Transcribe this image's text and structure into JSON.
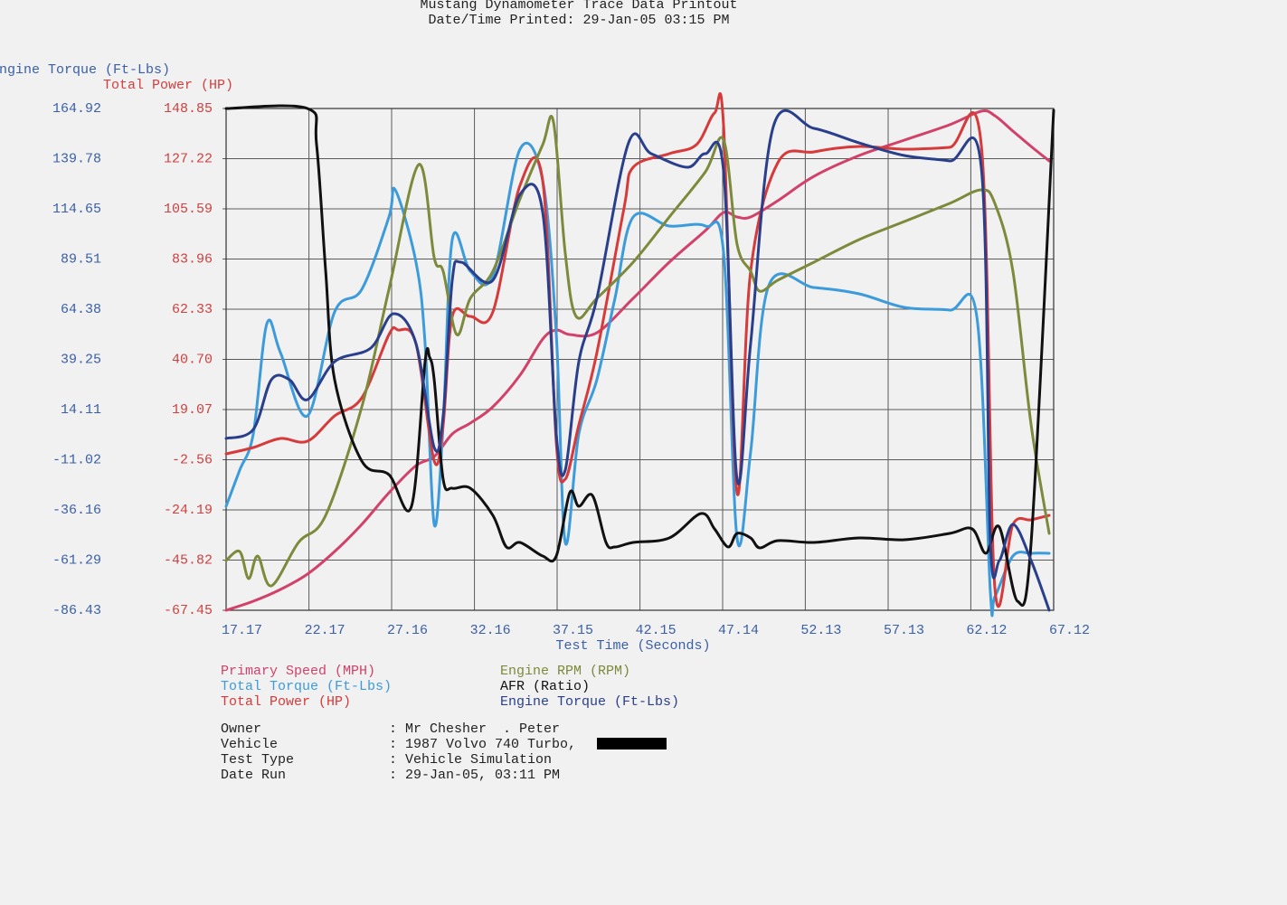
{
  "chart_data": {
    "type": "line",
    "title": "Mustang Dynamometer Trace Data Printout",
    "subtitle": "Date/Time Printed: 29-Jan-05 03:15 PM",
    "ylabel": "Engine Torque (Ft-Lbs)",
    "y2label": "Total Power (HP)",
    "xlabel": "Test Time (Seconds)",
    "xlim": [
      17.17,
      67.12
    ],
    "xticks": [
      17.17,
      22.17,
      27.16,
      32.16,
      37.15,
      42.15,
      47.14,
      52.13,
      57.13,
      62.12,
      67.12
    ],
    "ylim": [
      -86.43,
      164.92
    ],
    "yticks": [
      164.92,
      139.78,
      114.65,
      89.51,
      64.38,
      39.25,
      14.11,
      -11.02,
      -36.16,
      -61.29,
      -86.43
    ],
    "y2lim": [
      -67.45,
      148.85
    ],
    "y2ticks": [
      148.85,
      127.22,
      105.59,
      83.96,
      62.33,
      {
        "value": 40.7,
        "label": "40.70"
      },
      19.07,
      -2.56,
      -24.19,
      -45.82,
      -67.45
    ],
    "grid": true,
    "series": [
      {
        "name": "Primary Speed (MPH)",
        "color": "#d2416a",
        "x": [
          17.17,
          18.81,
          20.45,
          22.08,
          23.72,
          25.36,
          27.0,
          28.63,
          29.73,
          30.82,
          31.91,
          33.27,
          34.91,
          36.28,
          37.1,
          37.91,
          39.55,
          41.74,
          43.92,
          46.1,
          47.2,
          48.01,
          48.83,
          50.47,
          52.65,
          55.38,
          58.11,
          60.84,
          62.75,
          63.57,
          64.66,
          65.76,
          66.85
        ],
        "values": [
          -86.43,
          -81.9,
          -76.01,
          -68.31,
          -57.0,
          -43.41,
          -27.56,
          -13.97,
          -9.44,
          1.88,
          7.32,
          15.47,
          31.32,
          49.43,
          53.96,
          51.7,
          52.6,
          69.82,
          87.93,
          103.78,
          112.84,
          110.57,
          110.57,
          118.73,
          130.95,
          141.37,
          149.07,
          156.76,
          163.56,
          161.3,
          153.6,
          145.9,
          138.65
        ]
      },
      {
        "name": "Total Torque (Ft-Lbs)",
        "color": "#3b9bdb",
        "x": [
          17.17,
          17.99,
          18.81,
          19.63,
          20.45,
          22.08,
          23.72,
          25.36,
          27.0,
          27.38,
          28.63,
          29.18,
          29.73,
          30.27,
          30.82,
          31.91,
          33.27,
          34.91,
          36.28,
          37.1,
          37.64,
          38.46,
          39.55,
          40.64,
          41.74,
          43.92,
          46.1,
          47.2,
          48.01,
          48.83,
          49.92,
          52.65,
          55.38,
          58.11,
          60.84,
          62.48,
          63.3,
          63.57,
          64.66,
          65.76,
          66.85
        ],
        "values": [
          -34.35,
          -16.23,
          1.88,
          57.13,
          42.64,
          10.94,
          63.02,
          74.35,
          110.57,
          124.16,
          87.93,
          47.17,
          -43.41,
          6.41,
          99.25,
          83.4,
          81.14,
          144.54,
          128.69,
          51.7,
          -52.46,
          1.88,
          29.06,
          69.82,
          110.57,
          106.04,
          106.04,
          92.45,
          -50.2,
          -7.17,
          76.16,
          75.25,
          72.08,
          65.29,
          63.93,
          60.75,
          -77.37,
          -79.64,
          -59.26,
          -57.9,
          -57.9
        ]
      },
      {
        "name": "Total Power (HP)",
        "color": "#d63a3a",
        "axis": "y2",
        "x": [
          17.17,
          18.81,
          20.45,
          22.08,
          23.72,
          25.36,
          27.0,
          27.54,
          28.63,
          29.73,
          30.27,
          30.82,
          31.91,
          33.27,
          34.91,
          36.28,
          37.1,
          37.64,
          38.46,
          39.55,
          41.19,
          41.74,
          43.92,
          45.56,
          46.65,
          47.2,
          48.01,
          48.83,
          50.47,
          52.65,
          55.38,
          58.11,
          60.84,
          62.75,
          63.57,
          64.66,
          65.76,
          66.85
        ],
        "values": [
          -0.03,
          2.7,
          6.6,
          5.43,
          16.34,
          24.14,
          51.42,
          53.37,
          47.52,
          -3.14,
          12.44,
          59.21,
          59.21,
          61.16,
          115.72,
          117.67,
          4.65,
          -10.94,
          12.44,
          43.62,
          105.98,
          123.52,
          129.36,
          133.26,
          146.9,
          141.06,
          -16.79,
          78.7,
          125.47,
          130.14,
          132.48,
          131.31,
          132.09,
          133.26,
          -57.71,
          -30.43,
          -28.48,
          -26.53
        ]
      },
      {
        "name": "Engine RPM (RPM)",
        "color": "#7d8a3c",
        "x": [
          17.17,
          17.99,
          18.53,
          19.08,
          19.9,
          21.54,
          23.18,
          25.36,
          27.0,
          28.8,
          29.73,
          30.27,
          31.09,
          31.91,
          33.27,
          34.91,
          36.28,
          36.93,
          37.64,
          38.3,
          39.55,
          41.74,
          43.92,
          46.1,
          47.2,
          48.01,
          48.83,
          49.38,
          50.47,
          52.65,
          55.38,
          58.11,
          60.84,
          62.75,
          63.57,
          64.66,
          65.76,
          66.85
        ],
        "values": [
          -61.52,
          -57.0,
          -70.58,
          -59.26,
          -74.2,
          -52.46,
          -38.88,
          15.47,
          74.35,
          136.84,
          90.2,
          83.4,
          51.7,
          69.82,
          83.4,
          119.63,
          146.8,
          158.13,
          92.45,
          60.75,
          69.82,
          87.93,
          110.57,
          133.22,
          149.07,
          96.98,
          83.4,
          73.44,
          78.88,
          87.93,
          99.25,
          108.31,
          117.37,
          124.16,
          117.37,
          83.4,
          6.41,
          -47.94
        ]
      },
      {
        "name": "AFR (Ratio)",
        "color": "#111111",
        "x": [
          17.17,
          22.08,
          22.63,
          23.18,
          23.72,
          25.36,
          27.0,
          28.36,
          29.18,
          29.45,
          29.73,
          30.27,
          30.82,
          31.91,
          33.27,
          34.09,
          34.91,
          36.28,
          37.1,
          37.91,
          38.46,
          39.28,
          40.1,
          40.64,
          41.74,
          43.92,
          45.83,
          46.65,
          47.47,
          48.01,
          48.83,
          49.38,
          50.47,
          52.65,
          55.38,
          58.11,
          60.84,
          62.2,
          63.03,
          63.84,
          64.94,
          65.76,
          67.12
        ],
        "values": [
          164.92,
          164.92,
          146.8,
          83.4,
          29.06,
          -11.7,
          -18.5,
          -34.35,
          38.11,
          40.38,
          29.06,
          -20.76,
          -25.29,
          -25.29,
          -38.88,
          -54.73,
          -52.46,
          -59.26,
          -59.26,
          -27.56,
          -34.35,
          -28.92,
          -52.46,
          -54.73,
          -52.46,
          -50.2,
          -37.97,
          -45.67,
          -54.73,
          -47.94,
          -50.2,
          -55.18,
          -51.56,
          -52.46,
          -50.2,
          -51.11,
          -47.94,
          -45.67,
          -57.9,
          -44.76,
          -81.9,
          -52.46,
          164.01
        ]
      },
      {
        "name": "Engine Torque (Ft-Lbs)",
        "color": "#2a3f8c",
        "x": [
          17.17,
          18.81,
          19.9,
          20.99,
          22.08,
          23.72,
          25.9,
          27.27,
          28.63,
          29.73,
          30.27,
          30.82,
          31.36,
          33.27,
          34.91,
          36.28,
          37.1,
          37.64,
          38.46,
          39.55,
          41.46,
          42.83,
          45.01,
          46.1,
          47.2,
          48.01,
          48.83,
          50.2,
          52.65,
          55.38,
          58.11,
          60.84,
          62.75,
          63.3,
          63.84,
          64.66,
          65.76,
          66.85
        ],
        "values": [
          -0.38,
          4.15,
          29.06,
          29.06,
          19.09,
          38.11,
          44.91,
          62.11,
          47.17,
          -4.91,
          10.94,
          78.88,
          87.93,
          78.88,
          121.9,
          112.84,
          1.88,
          -16.23,
          38.11,
          69.82,
          147.71,
          142.28,
          135.48,
          142.28,
          133.22,
          -20.76,
          47.17,
          155.86,
          154.96,
          147.71,
          141.37,
          138.65,
          135.48,
          -52.46,
          -61.52,
          -43.41,
          -61.52,
          -86.43
        ]
      }
    ]
  },
  "run_info": [
    {
      "label": "Owner",
      "value": ": Mr Chesher  . Peter"
    },
    {
      "label": "Vehicle",
      "value": ": 1987 Volvo 740 Turbo,"
    },
    {
      "label": "Test Type",
      "value": ": Vehicle Simulation"
    },
    {
      "label": "Date Run",
      "value": ": 29-Jan-05, 03:11 PM"
    }
  ]
}
